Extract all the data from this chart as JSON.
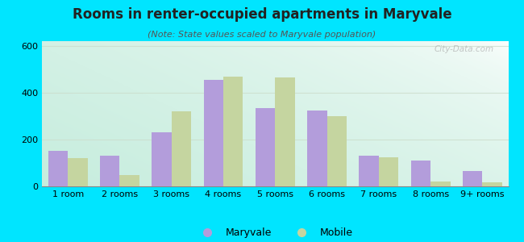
{
  "title": "Rooms in renter-occupied apartments in Maryvale",
  "subtitle": "(Note: State values scaled to Maryvale population)",
  "categories": [
    "1 room",
    "2 rooms",
    "3 rooms",
    "4 rooms",
    "5 rooms",
    "6 rooms",
    "7 rooms",
    "8 rooms",
    "9+ rooms"
  ],
  "maryvale": [
    150,
    130,
    230,
    455,
    335,
    325,
    130,
    110,
    65
  ],
  "mobile": [
    120,
    48,
    320,
    470,
    465,
    300,
    125,
    22,
    18
  ],
  "maryvale_color": "#b39ddb",
  "mobile_color": "#c5d5a0",
  "bg_outer": "#00e5ff",
  "ylim": [
    0,
    620
  ],
  "yticks": [
    0,
    200,
    400,
    600
  ],
  "title_fontsize": 12,
  "subtitle_fontsize": 8,
  "tick_fontsize": 8,
  "legend_fontsize": 9,
  "bar_width": 0.38
}
